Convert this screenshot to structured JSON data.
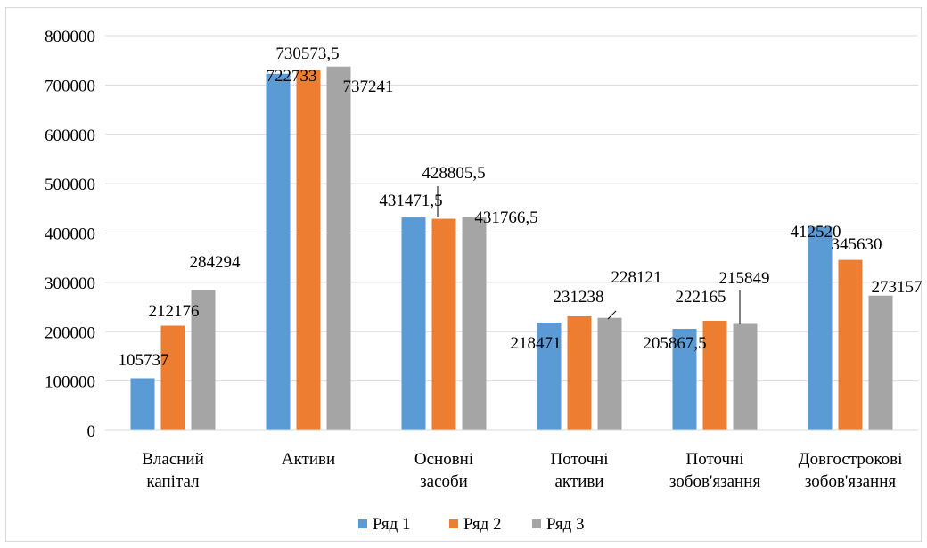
{
  "chart_data": {
    "type": "bar",
    "categories": [
      [
        "Власний",
        "капітал"
      ],
      [
        "Активи"
      ],
      [
        "Основні",
        "засоби"
      ],
      [
        "Поточні",
        "активи"
      ],
      [
        "Поточні",
        "зобов'язання"
      ],
      [
        "Довгострокові",
        "зобов'язання"
      ]
    ],
    "series": [
      {
        "name": "Ряд 1",
        "color": "#5b9bd5",
        "values": [
          105737,
          722733,
          431471.5,
          218471,
          205867.5,
          412520
        ],
        "labels": [
          "105737",
          "722733",
          "431471,5",
          "218471",
          "205867,5",
          "412520"
        ]
      },
      {
        "name": "Ряд 2",
        "color": "#ed7d31",
        "values": [
          212176,
          730573.5,
          428805.5,
          231238,
          222165,
          345630
        ],
        "labels": [
          "212176",
          "730573,5",
          "428805,5",
          "231238",
          "222165",
          "345630"
        ]
      },
      {
        "name": "Ряд 3",
        "color": "#a5a5a5",
        "values": [
          284294,
          737241,
          431766.5,
          228121,
          215849,
          273157
        ],
        "labels": [
          "284294",
          "737241",
          "431766,5",
          "228121",
          "215849",
          "273157"
        ]
      }
    ],
    "y_ticks": [
      "0",
      "100000",
      "200000",
      "300000",
      "400000",
      "500000",
      "600000",
      "700000",
      "800000"
    ],
    "ylim": [
      0,
      800000
    ],
    "grid": true,
    "legend_position": "bottom"
  }
}
